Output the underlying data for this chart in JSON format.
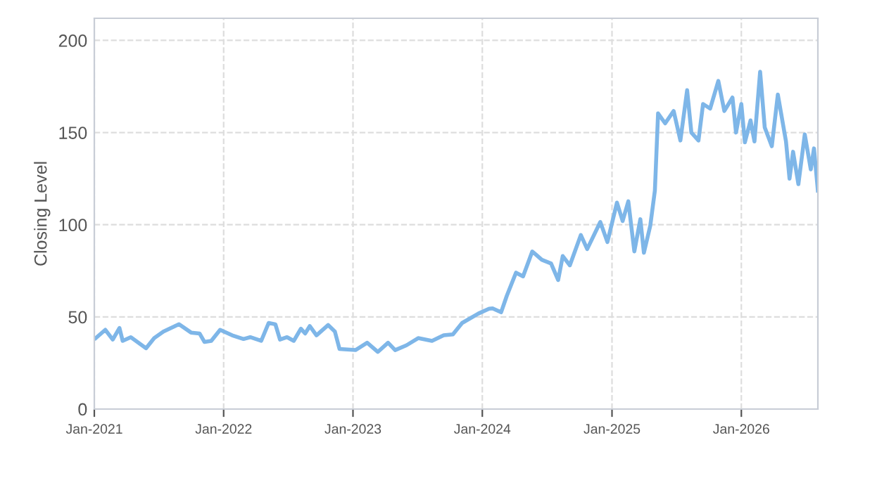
{
  "chart_data": {
    "type": "line",
    "ylabel": "Closing Level",
    "xlim": [
      "2021-01-01",
      "2026-08-05"
    ],
    "ylim": [
      0,
      212
    ],
    "xticks": [
      {
        "value": "2021-01-01",
        "label": "Jan-2021"
      },
      {
        "value": "2022-01-01",
        "label": "Jan-2022"
      },
      {
        "value": "2023-01-01",
        "label": "Jan-2023"
      },
      {
        "value": "2024-01-01",
        "label": "Jan-2024"
      },
      {
        "value": "2025-01-01",
        "label": "Jan-2025"
      },
      {
        "value": "2026-01-01",
        "label": "Jan-2026"
      }
    ],
    "yticks": [
      0,
      50,
      100,
      150,
      200
    ],
    "grid": true,
    "marker": "none",
    "line_style": "solid",
    "x": [
      "2021-01-05",
      "2021-02-01",
      "2021-02-22",
      "2021-03-13",
      "2021-03-22",
      "2021-04-14",
      "2021-05-27",
      "2021-06-19",
      "2021-07-15",
      "2021-08-28",
      "2021-10-01",
      "2021-10-25",
      "2021-11-08",
      "2021-11-27",
      "2021-12-22",
      "2022-01-25",
      "2022-02-26",
      "2022-03-17",
      "2022-04-17",
      "2022-05-08",
      "2022-05-27",
      "2022-06-09",
      "2022-06-29",
      "2022-07-18",
      "2022-08-07",
      "2022-08-19",
      "2022-09-01",
      "2022-09-20",
      "2022-10-23",
      "2022-11-11",
      "2022-11-24",
      "2023-01-08",
      "2023-02-10",
      "2023-03-12",
      "2023-04-10",
      "2023-04-30",
      "2023-06-01",
      "2023-07-04",
      "2023-08-12",
      "2023-09-14",
      "2023-10-10",
      "2023-11-05",
      "2023-12-21",
      "2024-01-20",
      "2024-01-30",
      "2024-02-23",
      "2024-03-10",
      "2024-04-05",
      "2024-04-25",
      "2024-05-21",
      "2024-06-17",
      "2024-07-13",
      "2024-08-02",
      "2024-08-15",
      "2024-09-04",
      "2024-10-05",
      "2024-10-23",
      "2024-11-29",
      "2024-12-19",
      "2025-01-15",
      "2025-01-31",
      "2025-02-16",
      "2025-03-05",
      "2025-03-22",
      "2025-04-01",
      "2025-04-19",
      "2025-05-02",
      "2025-05-11",
      "2025-05-31",
      "2025-06-24",
      "2025-07-13",
      "2025-08-01",
      "2025-08-13",
      "2025-09-02",
      "2025-09-15",
      "2025-10-05",
      "2025-10-28",
      "2025-11-14",
      "2025-12-07",
      "2025-12-17",
      "2026-01-01",
      "2026-01-11",
      "2026-01-27",
      "2026-02-07",
      "2026-02-23",
      "2026-03-08",
      "2026-03-28",
      "2026-04-14",
      "2026-05-07",
      "2026-05-17",
      "2026-05-27",
      "2026-06-11",
      "2026-06-29",
      "2026-07-16",
      "2026-07-25",
      "2026-08-05"
    ],
    "series": [
      {
        "color": "#7eb6e8",
        "values": [
          38.5,
          43,
          37.7,
          44,
          37,
          39,
          33,
          38.5,
          42,
          46,
          41.5,
          41,
          36.4,
          37,
          43,
          40,
          38,
          39,
          37,
          46.7,
          46,
          37.7,
          39,
          37,
          43.6,
          41,
          45,
          40,
          45.6,
          42,
          32.6,
          32,
          36,
          31,
          36,
          32,
          34.6,
          38.5,
          37,
          40,
          40.5,
          46.7,
          51.8,
          54.4,
          54.6,
          52.5,
          61.4,
          74,
          72,
          85.5,
          81,
          79,
          70,
          83,
          78,
          94.4,
          86.8,
          101.5,
          90.6,
          112,
          102,
          112.7,
          85.5,
          103,
          84.8,
          99.5,
          118.5,
          160.4,
          155,
          161.7,
          145.7,
          173,
          150,
          145.7,
          165.5,
          163,
          178,
          161.7,
          169,
          150,
          165.5,
          144.7,
          156.6,
          145.2,
          183,
          152.8,
          142.6,
          170.6,
          145.2,
          125,
          139.6,
          122,
          149,
          130,
          141.4,
          118.5
        ]
      }
    ]
  }
}
